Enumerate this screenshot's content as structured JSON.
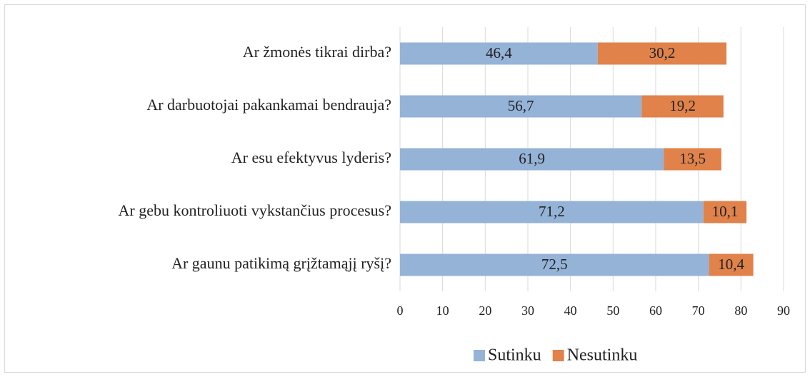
{
  "chart_data": {
    "type": "stacked-bar-horizontal",
    "categories": [
      "Ar žmonės tikrai dirba?",
      "Ar darbuotojai pakankamai bendrauja?",
      "Ar esu efektyvus lyderis?",
      "Ar gebu kontroliuoti vykstančius procesus?",
      "Ar gaunu patikimą grįžtamąjį ryšį?"
    ],
    "series": [
      {
        "name": "Sutinku",
        "color": "#95b3d7",
        "values": [
          46.4,
          56.7,
          61.9,
          71.2,
          72.5
        ],
        "value_labels": [
          "46,4",
          "56,7",
          "61,9",
          "71,2",
          "72,5"
        ]
      },
      {
        "name": "Nesutinku",
        "color": "#e0824a",
        "values": [
          30.2,
          19.2,
          13.5,
          10.1,
          10.4
        ],
        "value_labels": [
          "30,2",
          "19,2",
          "13,5",
          "10,1",
          "10,4"
        ]
      }
    ],
    "xlim": [
      0,
      90
    ],
    "xticks": [
      0,
      10,
      20,
      30,
      40,
      50,
      60,
      70,
      80,
      90
    ],
    "grid": true,
    "legend": "bottom"
  }
}
